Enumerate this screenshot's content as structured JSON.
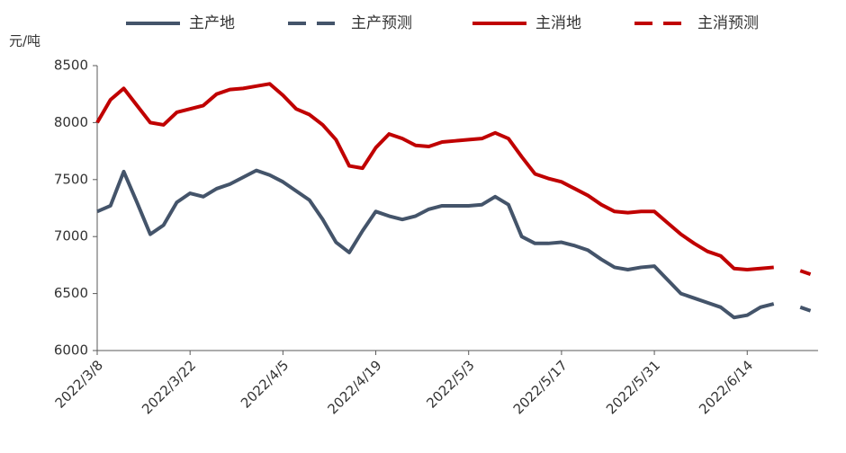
{
  "chart_data": {
    "type": "line",
    "y_label": "元/吨",
    "x": [
      "2022/3/8",
      "2022/3/10",
      "2022/3/12",
      "2022/3/14",
      "2022/3/16",
      "2022/3/18",
      "2022/3/20",
      "2022/3/22",
      "2022/3/24",
      "2022/3/26",
      "2022/3/28",
      "2022/3/30",
      "2022/4/1",
      "2022/4/3",
      "2022/4/5",
      "2022/4/7",
      "2022/4/9",
      "2022/4/11",
      "2022/4/13",
      "2022/4/15",
      "2022/4/17",
      "2022/4/19",
      "2022/4/21",
      "2022/4/23",
      "2022/4/25",
      "2022/4/27",
      "2022/4/29",
      "2022/5/1",
      "2022/5/3",
      "2022/5/5",
      "2022/5/7",
      "2022/5/9",
      "2022/5/11",
      "2022/5/13",
      "2022/5/15",
      "2022/5/17",
      "2022/5/19",
      "2022/5/21",
      "2022/5/23",
      "2022/5/25",
      "2022/5/27",
      "2022/5/29",
      "2022/5/31",
      "2022/6/2",
      "2022/6/4",
      "2022/6/6",
      "2022/6/8",
      "2022/6/10",
      "2022/6/12",
      "2022/6/14",
      "2022/6/16",
      "2022/6/18",
      "2022/6/20",
      "2022/6/22",
      "2022/6/24"
    ],
    "xticks": [
      "2022/3/8",
      "2022/3/22",
      "2022/4/5",
      "2022/4/19",
      "2022/5/3",
      "2022/5/17",
      "2022/5/31",
      "2022/6/14"
    ],
    "ylim": [
      6000,
      8500
    ],
    "yticks": [
      6000,
      6500,
      7000,
      7500,
      8000,
      8500
    ],
    "series": [
      {
        "name": "主产地",
        "color": "#44546a",
        "dash": false,
        "values": [
          7220,
          7270,
          7570,
          7300,
          7020,
          7100,
          7300,
          7380,
          7350,
          7420,
          7460,
          7520,
          7580,
          7540,
          7480,
          7400,
          7320,
          7150,
          6950,
          6860,
          7050,
          7220,
          7180,
          7150,
          7180,
          7240,
          7270,
          7270,
          7270,
          7280,
          7350,
          7280,
          7000,
          6940,
          6940,
          6950,
          6920,
          6880,
          6800,
          6730,
          6710,
          6730,
          6740,
          6620,
          6500,
          6460,
          6420,
          6380,
          6290,
          6310,
          6380,
          6410,
          null,
          null,
          null
        ]
      },
      {
        "name": "主产预测",
        "color": "#44546a",
        "dash": true,
        "values": [
          null,
          null,
          null,
          null,
          null,
          null,
          null,
          null,
          null,
          null,
          null,
          null,
          null,
          null,
          null,
          null,
          null,
          null,
          null,
          null,
          null,
          null,
          null,
          null,
          null,
          null,
          null,
          null,
          null,
          null,
          null,
          null,
          null,
          null,
          null,
          null,
          null,
          null,
          null,
          null,
          null,
          null,
          null,
          null,
          null,
          null,
          null,
          null,
          null,
          null,
          null,
          null,
          null,
          6380,
          6340
        ]
      },
      {
        "name": "主消地",
        "color": "#c00000",
        "dash": false,
        "values": [
          8000,
          8200,
          8300,
          8150,
          8000,
          7980,
          8090,
          8120,
          8150,
          8250,
          8290,
          8300,
          8320,
          8340,
          8240,
          8120,
          8070,
          7980,
          7850,
          7620,
          7600,
          7780,
          7900,
          7860,
          7800,
          7790,
          7830,
          7840,
          7850,
          7860,
          7910,
          7860,
          7700,
          7550,
          7510,
          7480,
          7420,
          7360,
          7280,
          7220,
          7210,
          7220,
          7220,
          7120,
          7020,
          6940,
          6870,
          6830,
          6720,
          6710,
          6720,
          6730,
          null,
          null,
          null
        ]
      },
      {
        "name": "主消预测",
        "color": "#c00000",
        "dash": true,
        "values": [
          null,
          null,
          null,
          null,
          null,
          null,
          null,
          null,
          null,
          null,
          null,
          null,
          null,
          null,
          null,
          null,
          null,
          null,
          null,
          null,
          null,
          null,
          null,
          null,
          null,
          null,
          null,
          null,
          null,
          null,
          null,
          null,
          null,
          null,
          null,
          null,
          null,
          null,
          null,
          null,
          null,
          null,
          null,
          null,
          null,
          null,
          null,
          null,
          null,
          null,
          null,
          null,
          null,
          6700,
          6660
        ]
      }
    ]
  }
}
